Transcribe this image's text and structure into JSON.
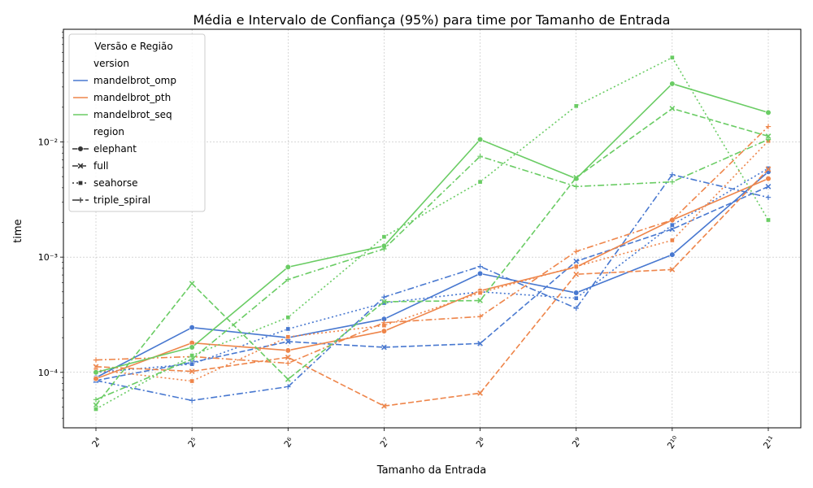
{
  "chart_data": {
    "type": "line",
    "title": "Média e Intervalo de Confiança (95%) para time por Tamanho de Entrada",
    "xlabel": "Tamanho da Entrada",
    "ylabel": "time",
    "x": [
      16,
      32,
      64,
      128,
      256,
      512,
      1024,
      2048
    ],
    "x_tick_labels": [
      "2⁴",
      "2⁵",
      "2⁶",
      "2⁷",
      "2⁸",
      "2⁹",
      "2¹⁰",
      "2¹¹"
    ],
    "x_scale": "log2",
    "y_scale": "log10",
    "ylim": [
      3.3e-05,
      0.095
    ],
    "y_ticks": [
      0.0001,
      0.001,
      0.01
    ],
    "y_tick_labels": [
      "10⁻⁴",
      "10⁻³",
      "10⁻²"
    ],
    "grid": true,
    "legend": {
      "title": "Versão e Região",
      "placement": "top-left",
      "version_header": "version",
      "region_header": "region",
      "versions": [
        {
          "name": "mandelbrot_omp",
          "color": "#4878d0"
        },
        {
          "name": "mandelbrot_pth",
          "color": "#ee854a"
        },
        {
          "name": "mandelbrot_seq",
          "color": "#6acc64"
        }
      ],
      "regions": [
        {
          "name": "elephant",
          "dash": "solid",
          "marker": "circle"
        },
        {
          "name": "full",
          "dash": "dashed",
          "marker": "x"
        },
        {
          "name": "seahorse",
          "dash": "dotted",
          "marker": "square"
        },
        {
          "name": "triple_spiral",
          "dash": "dashdot",
          "marker": "plus"
        }
      ]
    },
    "series": [
      {
        "version": "mandelbrot_omp",
        "region": "elephant",
        "values": [
          9e-05,
          0.000245,
          0.0002,
          0.00029,
          0.00072,
          0.00049,
          0.00105,
          0.0055
        ]
      },
      {
        "version": "mandelbrot_omp",
        "region": "full",
        "values": [
          8.5e-05,
          0.000122,
          0.000185,
          0.000165,
          0.000178,
          0.00092,
          0.00175,
          0.0041
        ]
      },
      {
        "version": "mandelbrot_omp",
        "region": "seahorse",
        "values": [
          0.0001,
          0.000118,
          0.000238,
          0.0004,
          0.0005,
          0.00044,
          0.0019,
          0.0059
        ]
      },
      {
        "version": "mandelbrot_omp",
        "region": "triple_spiral",
        "values": [
          8.5e-05,
          5.7e-05,
          7.5e-05,
          0.00045,
          0.00083,
          0.00036,
          0.0052,
          0.0033
        ]
      },
      {
        "version": "mandelbrot_pth",
        "region": "elephant",
        "values": [
          8.8e-05,
          0.00018,
          0.000155,
          0.000228,
          0.00051,
          0.00082,
          0.0021,
          0.0048
        ]
      },
      {
        "version": "mandelbrot_pth",
        "region": "full",
        "values": [
          0.000112,
          0.000102,
          0.000135,
          5.1e-05,
          6.6e-05,
          0.00071,
          0.00078,
          0.0058
        ]
      },
      {
        "version": "mandelbrot_pth",
        "region": "seahorse",
        "values": [
          0.000105,
          8.4e-05,
          0.000203,
          0.000255,
          0.00049,
          0.00083,
          0.0014,
          0.0102
        ]
      },
      {
        "version": "mandelbrot_pth",
        "region": "triple_spiral",
        "values": [
          0.000128,
          0.000137,
          0.00012,
          0.00027,
          0.000305,
          0.00112,
          0.0021,
          0.0136
        ]
      },
      {
        "version": "mandelbrot_seq",
        "region": "elephant",
        "values": [
          0.0001,
          0.000165,
          0.00082,
          0.00125,
          0.0105,
          0.0048,
          0.032,
          0.018
        ]
      },
      {
        "version": "mandelbrot_seq",
        "region": "full",
        "values": [
          5.2e-05,
          0.00059,
          8.7e-05,
          0.00041,
          0.00042,
          0.0049,
          0.0195,
          0.0112
        ]
      },
      {
        "version": "mandelbrot_seq",
        "region": "seahorse",
        "values": [
          4.8e-05,
          0.00014,
          0.0003,
          0.0015,
          0.0045,
          0.0205,
          0.054,
          0.0021
        ]
      },
      {
        "version": "mandelbrot_seq",
        "region": "triple_spiral",
        "values": [
          5.8e-05,
          0.00013,
          0.00064,
          0.00118,
          0.0075,
          0.0041,
          0.0045,
          0.0105
        ]
      }
    ]
  }
}
